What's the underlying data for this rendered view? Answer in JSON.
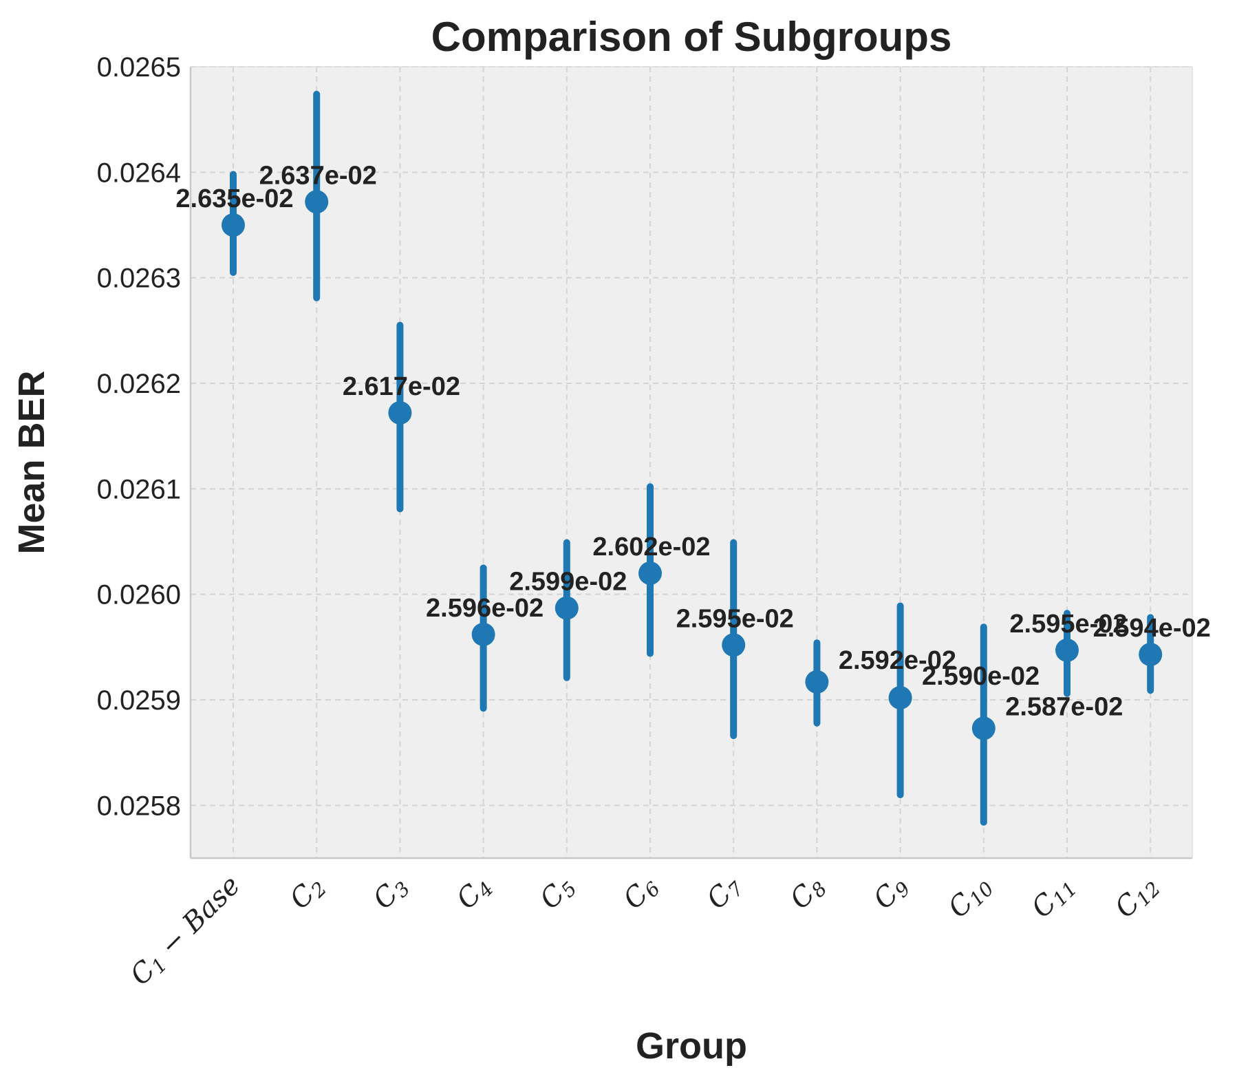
{
  "chart_data": {
    "type": "errorbar-point",
    "title": "Comparison of Subgroups",
    "xlabel": "Group",
    "ylabel": "Mean BER",
    "ylim": [
      0.02575,
      0.0265
    ],
    "yticks": [
      0.0258,
      0.0259,
      0.026,
      0.0261,
      0.0262,
      0.0263,
      0.0264,
      0.0265
    ],
    "ytick_labels": [
      "0.0258",
      "0.0259",
      "0.0260",
      "0.0261",
      "0.0262",
      "0.0263",
      "0.0264",
      "0.0265"
    ],
    "grid": true,
    "colors": {
      "marker": "#1f77b4",
      "plot_bg": "#efefef",
      "grid": "#d4d4d4",
      "spine": "#c8c8c8",
      "text": "#222222"
    },
    "categories": [
      {
        "main": "C",
        "sub": "1",
        "suffix": " − Base"
      },
      {
        "main": "C",
        "sub": "2",
        "suffix": ""
      },
      {
        "main": "C",
        "sub": "3",
        "suffix": ""
      },
      {
        "main": "C",
        "sub": "4",
        "suffix": ""
      },
      {
        "main": "C",
        "sub": "5",
        "suffix": ""
      },
      {
        "main": "C",
        "sub": "6",
        "suffix": ""
      },
      {
        "main": "C",
        "sub": "7",
        "suffix": ""
      },
      {
        "main": "C",
        "sub": "8",
        "suffix": ""
      },
      {
        "main": "C",
        "sub": "9",
        "suffix": ""
      },
      {
        "main": "C",
        "sub": "10",
        "suffix": ""
      },
      {
        "main": "C",
        "sub": "11",
        "suffix": ""
      },
      {
        "main": "C",
        "sub": "12",
        "suffix": ""
      }
    ],
    "series": [
      {
        "name": "Mean BER",
        "means": [
          0.02635,
          0.026372,
          0.026172,
          0.025962,
          0.025987,
          0.02602,
          0.025952,
          0.025917,
          0.025902,
          0.025873,
          0.025947,
          0.025943
        ],
        "lower": [
          0.026305,
          0.026281,
          0.026081,
          0.025892,
          0.025921,
          0.025944,
          0.025866,
          0.025878,
          0.02581,
          0.025784,
          0.025906,
          0.025909
        ],
        "upper": [
          0.026398,
          0.026474,
          0.026255,
          0.026025,
          0.026049,
          0.026102,
          0.026049,
          0.025954,
          0.025989,
          0.025969,
          0.025982,
          0.025978
        ],
        "labels": [
          "2.635e-02",
          "2.637e-02",
          "2.617e-02",
          "2.596e-02",
          "2.599e-02",
          "2.602e-02",
          "2.595e-02",
          "2.592e-02",
          "2.590e-02",
          "2.587e-02",
          "2.595e-02",
          "2.594e-02"
        ],
        "label_pos": [
          "above",
          "above",
          "above",
          "above",
          "above",
          "above",
          "above",
          "right",
          "right",
          "right",
          "above",
          "above"
        ]
      }
    ]
  }
}
